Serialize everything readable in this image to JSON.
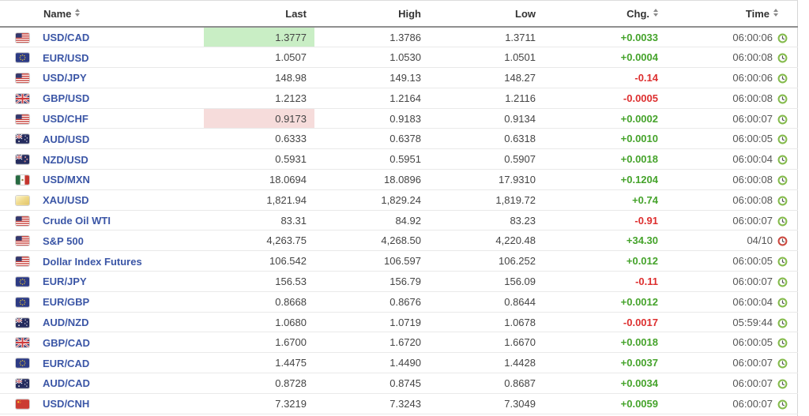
{
  "colors": {
    "link_blue": "#3b56a6",
    "up_green": "#45a32b",
    "down_red": "#dd2f2f",
    "flash_up_bg": "#c9eec5",
    "flash_down_bg": "#f6dcdb",
    "clock_green": "#85bb4d",
    "clock_red": "#cb4940",
    "header_text": "#333333",
    "number_text": "#444444",
    "time_text": "#555555"
  },
  "table": {
    "columns": [
      {
        "label": "Name",
        "sortable": true
      },
      {
        "label": "Last",
        "sortable": false
      },
      {
        "label": "High",
        "sortable": false
      },
      {
        "label": "Low",
        "sortable": false
      },
      {
        "label": "Chg.",
        "sortable": true
      },
      {
        "label": "Time",
        "sortable": true
      }
    ],
    "rows": [
      {
        "flag": "us-flag",
        "name": "USD/CAD",
        "last": "1.3777",
        "high": "1.3786",
        "low": "1.3711",
        "chg": "+0.0033",
        "chg_dir": "up",
        "time": "06:00:06",
        "clock": "green",
        "last_flash": "up"
      },
      {
        "flag": "eu-flag",
        "name": "EUR/USD",
        "last": "1.0507",
        "high": "1.0530",
        "low": "1.0501",
        "chg": "+0.0004",
        "chg_dir": "up",
        "time": "06:00:08",
        "clock": "green",
        "last_flash": null
      },
      {
        "flag": "us-flag",
        "name": "USD/JPY",
        "last": "148.98",
        "high": "149.13",
        "low": "148.27",
        "chg": "-0.14",
        "chg_dir": "down",
        "time": "06:00:06",
        "clock": "green",
        "last_flash": null
      },
      {
        "flag": "gb-flag",
        "name": "GBP/USD",
        "last": "1.2123",
        "high": "1.2164",
        "low": "1.2116",
        "chg": "-0.0005",
        "chg_dir": "down",
        "time": "06:00:08",
        "clock": "green",
        "last_flash": null
      },
      {
        "flag": "us-flag",
        "name": "USD/CHF",
        "last": "0.9173",
        "high": "0.9183",
        "low": "0.9134",
        "chg": "+0.0002",
        "chg_dir": "up",
        "time": "06:00:07",
        "clock": "green",
        "last_flash": "down"
      },
      {
        "flag": "au-flag",
        "name": "AUD/USD",
        "last": "0.6333",
        "high": "0.6378",
        "low": "0.6318",
        "chg": "+0.0010",
        "chg_dir": "up",
        "time": "06:00:05",
        "clock": "green",
        "last_flash": null
      },
      {
        "flag": "nz-flag",
        "name": "NZD/USD",
        "last": "0.5931",
        "high": "0.5951",
        "low": "0.5907",
        "chg": "+0.0018",
        "chg_dir": "up",
        "time": "06:00:04",
        "clock": "green",
        "last_flash": null
      },
      {
        "flag": "mx-flag",
        "name": "USD/MXN",
        "last": "18.0694",
        "high": "18.0896",
        "low": "17.9310",
        "chg": "+0.1204",
        "chg_dir": "up",
        "time": "06:00:08",
        "clock": "green",
        "last_flash": null
      },
      {
        "flag": "gold-flag",
        "name": "XAU/USD",
        "last": "1,821.94",
        "high": "1,829.24",
        "low": "1,819.72",
        "chg": "+0.74",
        "chg_dir": "up",
        "time": "06:00:08",
        "clock": "green",
        "last_flash": null
      },
      {
        "flag": "us-flag",
        "name": "Crude Oil WTI",
        "last": "83.31",
        "high": "84.92",
        "low": "83.23",
        "chg": "-0.91",
        "chg_dir": "down",
        "time": "06:00:07",
        "clock": "green",
        "last_flash": null
      },
      {
        "flag": "us-flag",
        "name": "S&P 500",
        "last": "4,263.75",
        "high": "4,268.50",
        "low": "4,220.48",
        "chg": "+34.30",
        "chg_dir": "up",
        "time": "04/10",
        "clock": "red",
        "last_flash": null
      },
      {
        "flag": "us-flag",
        "name": "Dollar Index Futures",
        "last": "106.542",
        "high": "106.597",
        "low": "106.252",
        "chg": "+0.012",
        "chg_dir": "up",
        "time": "06:00:05",
        "clock": "green",
        "last_flash": null
      },
      {
        "flag": "eu-flag",
        "name": "EUR/JPY",
        "last": "156.53",
        "high": "156.79",
        "low": "156.09",
        "chg": "-0.11",
        "chg_dir": "down",
        "time": "06:00:07",
        "clock": "green",
        "last_flash": null
      },
      {
        "flag": "eu-flag",
        "name": "EUR/GBP",
        "last": "0.8668",
        "high": "0.8676",
        "low": "0.8644",
        "chg": "+0.0012",
        "chg_dir": "up",
        "time": "06:00:04",
        "clock": "green",
        "last_flash": null
      },
      {
        "flag": "au-flag",
        "name": "AUD/NZD",
        "last": "1.0680",
        "high": "1.0719",
        "low": "1.0678",
        "chg": "-0.0017",
        "chg_dir": "down",
        "time": "05:59:44",
        "clock": "green",
        "last_flash": null
      },
      {
        "flag": "gb-flag",
        "name": "GBP/CAD",
        "last": "1.6700",
        "high": "1.6720",
        "low": "1.6670",
        "chg": "+0.0018",
        "chg_dir": "up",
        "time": "06:00:05",
        "clock": "green",
        "last_flash": null
      },
      {
        "flag": "eu-flag",
        "name": "EUR/CAD",
        "last": "1.4475",
        "high": "1.4490",
        "low": "1.4428",
        "chg": "+0.0037",
        "chg_dir": "up",
        "time": "06:00:07",
        "clock": "green",
        "last_flash": null
      },
      {
        "flag": "au-flag",
        "name": "AUD/CAD",
        "last": "0.8728",
        "high": "0.8745",
        "low": "0.8687",
        "chg": "+0.0034",
        "chg_dir": "up",
        "time": "06:00:07",
        "clock": "green",
        "last_flash": null
      },
      {
        "flag": "cn-flag",
        "name": "USD/CNH",
        "last": "7.3219",
        "high": "7.3243",
        "low": "7.3049",
        "chg": "+0.0059",
        "chg_dir": "up",
        "time": "06:00:07",
        "clock": "green",
        "last_flash": null
      }
    ]
  }
}
